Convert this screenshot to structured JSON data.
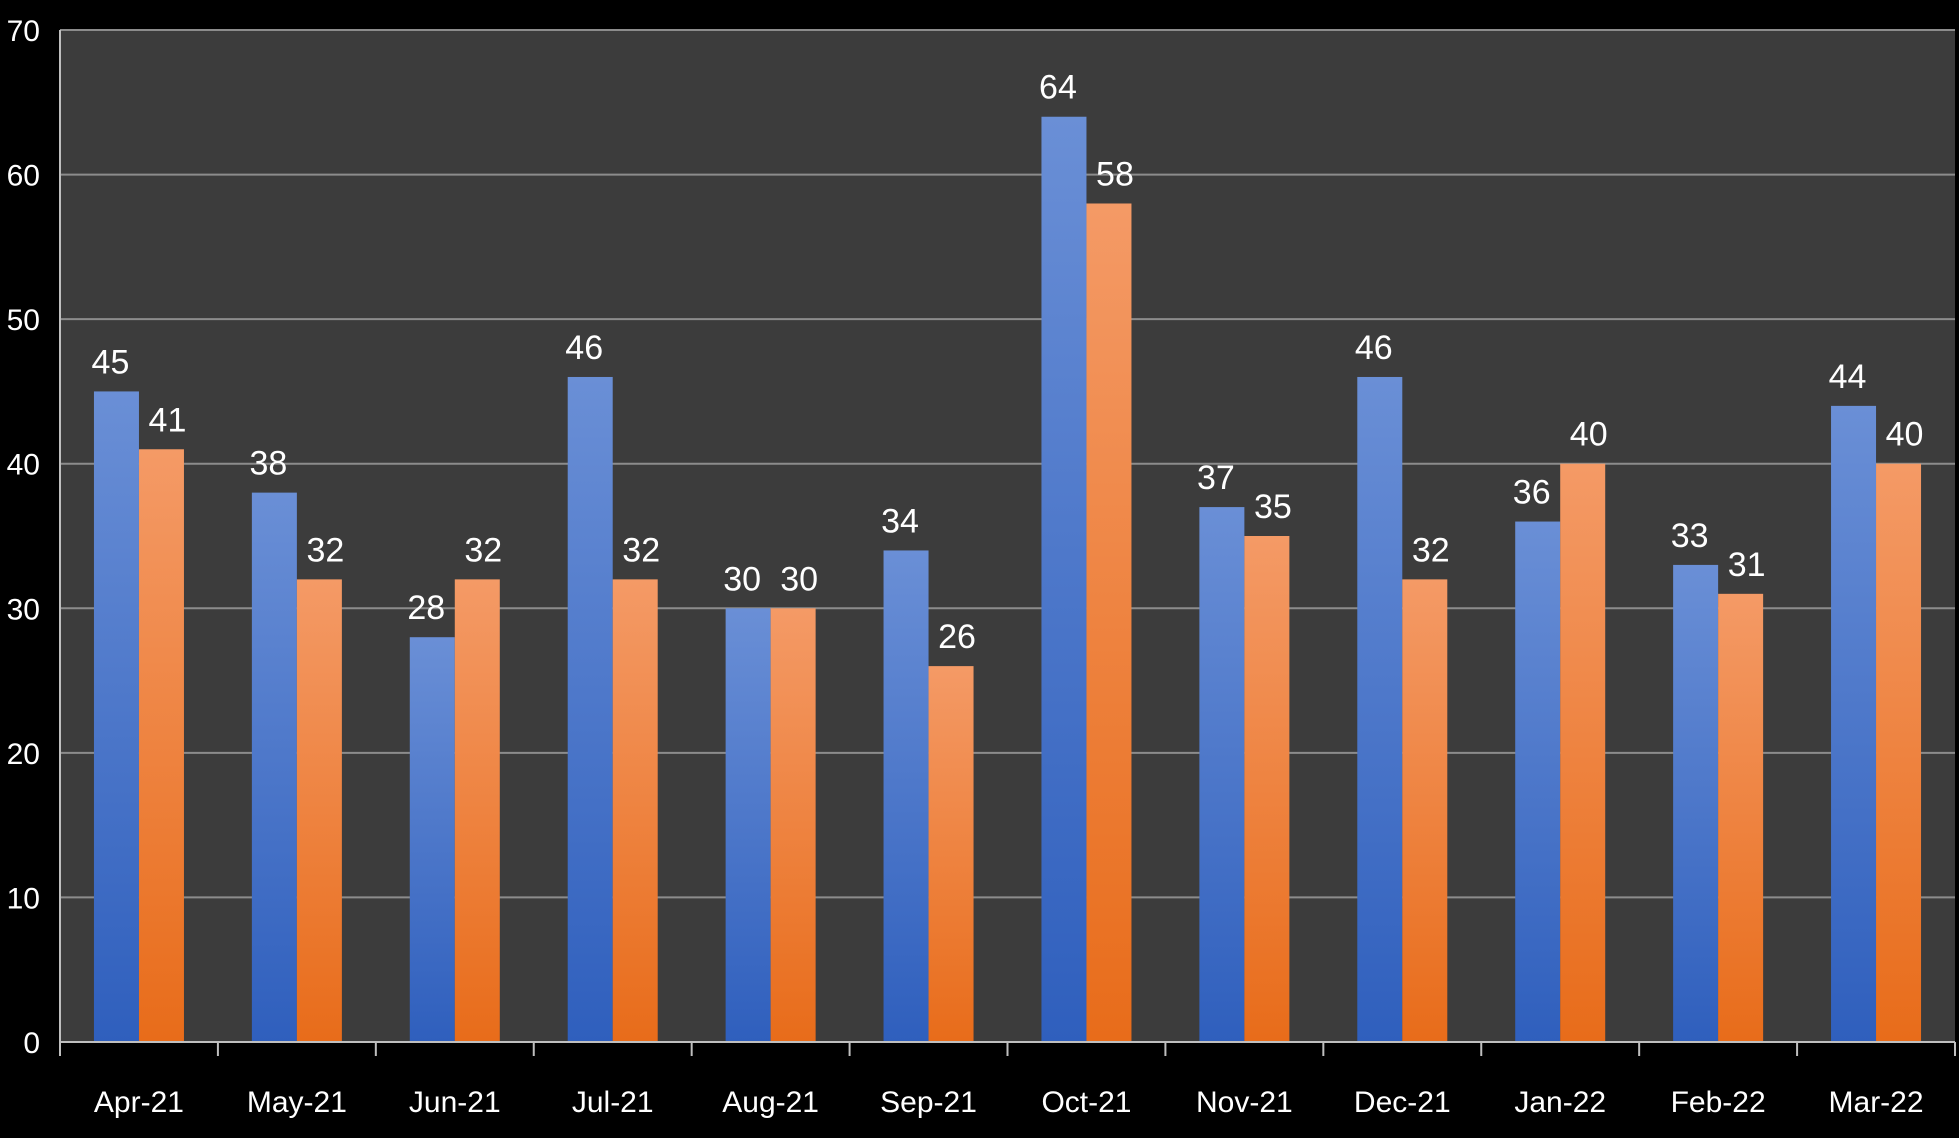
{
  "chart_data": {
    "type": "bar",
    "categories": [
      "Apr-21",
      "May-21",
      "Jun-21",
      "Jul-21",
      "Aug-21",
      "Sep-21",
      "Oct-21",
      "Nov-21",
      "Dec-21",
      "Jan-22",
      "Feb-22",
      "Mar-22"
    ],
    "series": [
      {
        "values": [
          45,
          38,
          28,
          46,
          30,
          34,
          64,
          37,
          46,
          36,
          33,
          44
        ]
      },
      {
        "values": [
          41,
          32,
          32,
          32,
          30,
          26,
          58,
          35,
          32,
          40,
          31,
          40
        ]
      }
    ],
    "ylim": [
      0,
      70
    ],
    "yticks": [
      0,
      10,
      20,
      30,
      40,
      50,
      60,
      70
    ],
    "grid": true,
    "legend": "none",
    "colors": {
      "plot_background": "#3c3c3c",
      "page_background": "#000000",
      "gridline": "#8c8c8c",
      "series": [
        {
          "top": "#6a8fd6",
          "bottom": "#2f5fbd"
        },
        {
          "top": "#f49a66",
          "bottom": "#e86c1a"
        }
      ]
    }
  }
}
